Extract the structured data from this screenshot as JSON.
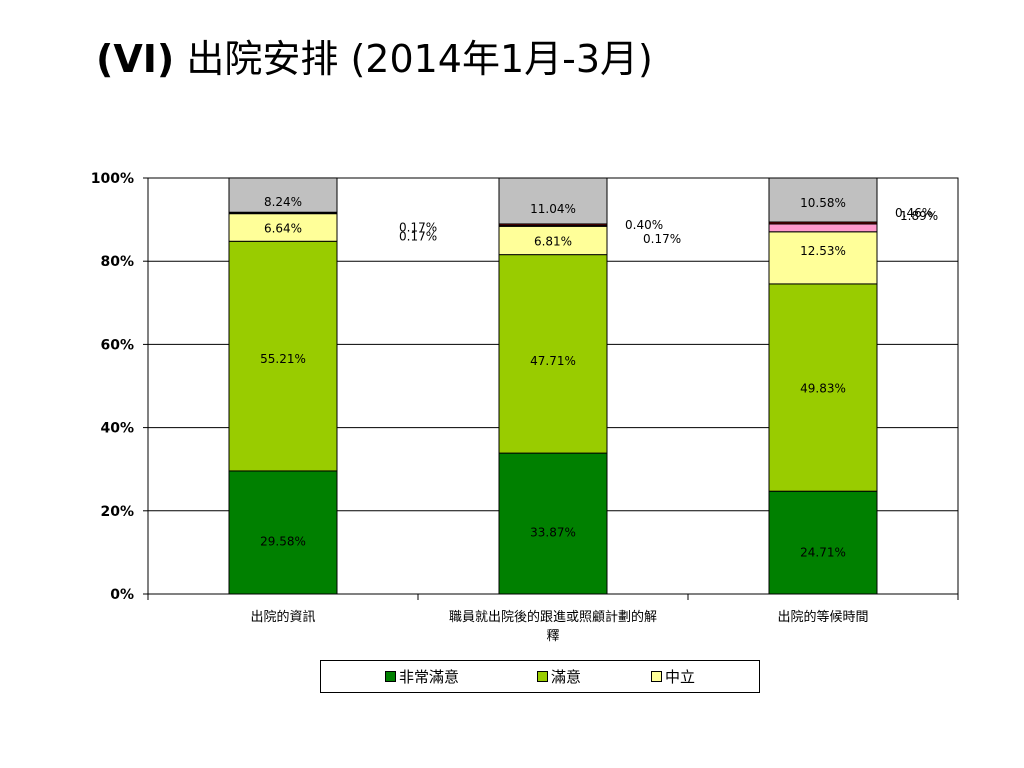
{
  "title": {
    "lead": "(VI)",
    "rest": " 出院安排 (2014年1月-3月)"
  },
  "chart_data": {
    "type": "bar",
    "stacked": true,
    "percent": true,
    "categories": [
      "出院的資訊",
      "職員就出院後的跟進或照顧計劃的解釋",
      "出院的等候時間"
    ],
    "category_lines": [
      [
        "出院的資訊"
      ],
      [
        "職員就出院後的跟進或照顧計劃的解",
        "釋"
      ],
      [
        "出院的等候時間"
      ]
    ],
    "series": [
      {
        "name": "非常滿意",
        "color": "#008000",
        "values": [
          29.58,
          33.87,
          24.71
        ],
        "labels": [
          "29.58%",
          "33.87%",
          "24.71%"
        ]
      },
      {
        "name": "滿意",
        "color": "#99cc00",
        "values": [
          55.21,
          47.71,
          49.83
        ],
        "labels": [
          "55.21%",
          "47.71%",
          "49.83%"
        ]
      },
      {
        "name": "中立",
        "color": "#ffff99",
        "values": [
          6.64,
          6.81,
          12.53
        ],
        "labels": [
          "6.64%",
          "6.81%",
          "12.53%"
        ]
      },
      {
        "color": "#ff99cc",
        "values": [
          0.17,
          0.17,
          1.89
        ],
        "labels": [
          "0.17%",
          "0.17%",
          "1.89%"
        ]
      },
      {
        "color": "#800000",
        "values": [
          0.17,
          0.4,
          0.46
        ],
        "labels": [
          "0.17%",
          "0.40%",
          "0.46%"
        ]
      },
      {
        "color": "#c0c0c0",
        "values": [
          8.24,
          11.04,
          10.58
        ],
        "labels": [
          "8.24%",
          "11.04%",
          "10.58%"
        ]
      }
    ],
    "y_ticks": [
      "0%",
      "20%",
      "40%",
      "60%",
      "80%",
      "100%"
    ],
    "ylim": [
      0,
      100
    ],
    "grid": true,
    "legend": "bottom",
    "legend_entries": [
      "非常滿意",
      "滿意",
      "中立"
    ]
  }
}
